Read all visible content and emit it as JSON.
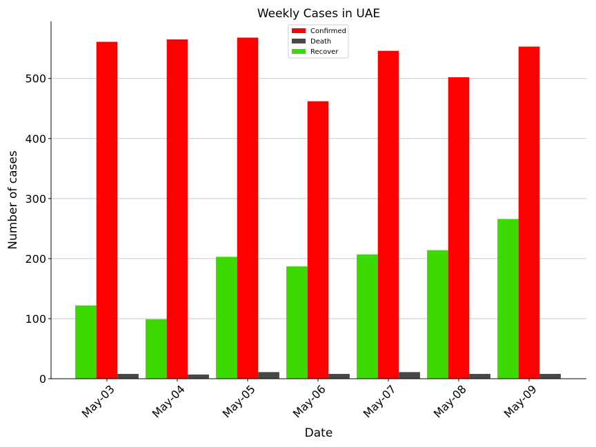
{
  "chart_data": {
    "type": "bar",
    "title": "Weekly Cases in UAE",
    "xlabel": "Date",
    "ylabel": "Number of cases",
    "categories": [
      "May-03",
      "May-04",
      "May-05",
      "May-06",
      "May-07",
      "May-08",
      "May-09"
    ],
    "series": [
      {
        "name": "Recover",
        "color": "#3dd902",
        "values": [
          122,
          99,
          203,
          187,
          207,
          214,
          266
        ]
      },
      {
        "name": "Confirmed",
        "color": "#ff0000",
        "values": [
          561,
          565,
          568,
          462,
          546,
          502,
          553
        ]
      },
      {
        "name": "Death",
        "color": "#474747",
        "values": [
          8,
          7,
          11,
          8,
          11,
          8,
          8
        ]
      }
    ],
    "legend_order": [
      "Confirmed",
      "Death",
      "Recover"
    ],
    "ylim": [
      0,
      595
    ],
    "yticks": [
      0,
      100,
      200,
      300,
      400,
      500
    ],
    "grid": "y",
    "legend_position": "top-center",
    "xtick_rotation": 45
  }
}
